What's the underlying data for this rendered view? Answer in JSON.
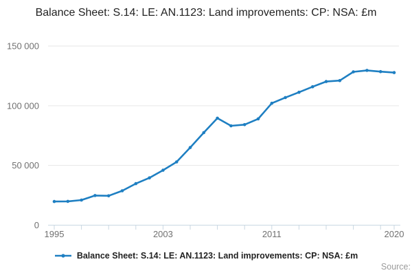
{
  "title": "Balance Sheet: S.14: LE: AN.1123: Land improvements: CP: NSA: £m",
  "legend": {
    "label": "Balance Sheet: S.14: LE: AN.1123: Land improvements: CP: NSA: £m"
  },
  "source_label": "Source:",
  "colors": {
    "line": "#1e7fc2",
    "marker": "#1e7fc2",
    "grid": "#e6e6e6",
    "axis": "#c9d7e2",
    "tick_label": "#707070",
    "title_text": "#222222",
    "source_text": "#9b9b9b"
  },
  "chart_data": {
    "type": "line",
    "title": "Balance Sheet: S.14: LE: AN.1123: Land improvements: CP: NSA: £m",
    "xlabel": "",
    "ylabel": "",
    "x": [
      1995,
      1996,
      1997,
      1998,
      1999,
      2000,
      2001,
      2002,
      2003,
      2004,
      2005,
      2006,
      2007,
      2008,
      2009,
      2010,
      2011,
      2012,
      2013,
      2014,
      2015,
      2016,
      2017,
      2018,
      2019,
      2020
    ],
    "series": [
      {
        "name": "Balance Sheet: S.14: LE: AN.1123: Land improvements: CP: NSA: £m",
        "values": [
          19800,
          19900,
          21000,
          24800,
          24600,
          28800,
          34800,
          39600,
          46000,
          53000,
          65000,
          77500,
          89600,
          83200,
          84200,
          89000,
          102100,
          106900,
          111300,
          115900,
          120300,
          121100,
          128400,
          129600,
          128600,
          127800
        ]
      }
    ],
    "ylim": [
      0,
      150000
    ],
    "xlim": [
      1995,
      2020
    ],
    "yticks": [
      {
        "value": 0,
        "label": "0"
      },
      {
        "value": 50000,
        "label": "50 000"
      },
      {
        "value": 100000,
        "label": "100 000"
      },
      {
        "value": 150000,
        "label": "150 000"
      }
    ],
    "xticks_minor": [
      1995,
      1997,
      1999,
      2001,
      2003,
      2005,
      2007,
      2009,
      2011,
      2013,
      2015,
      2017,
      2019,
      2020
    ],
    "xtick_labels": [
      {
        "value": 1995,
        "label": "1995"
      },
      {
        "value": 2003,
        "label": "2003"
      },
      {
        "value": 2011,
        "label": "2011"
      },
      {
        "value": 2020,
        "label": "2020"
      }
    ],
    "grid": "horizontal",
    "legend_position": "bottom"
  }
}
